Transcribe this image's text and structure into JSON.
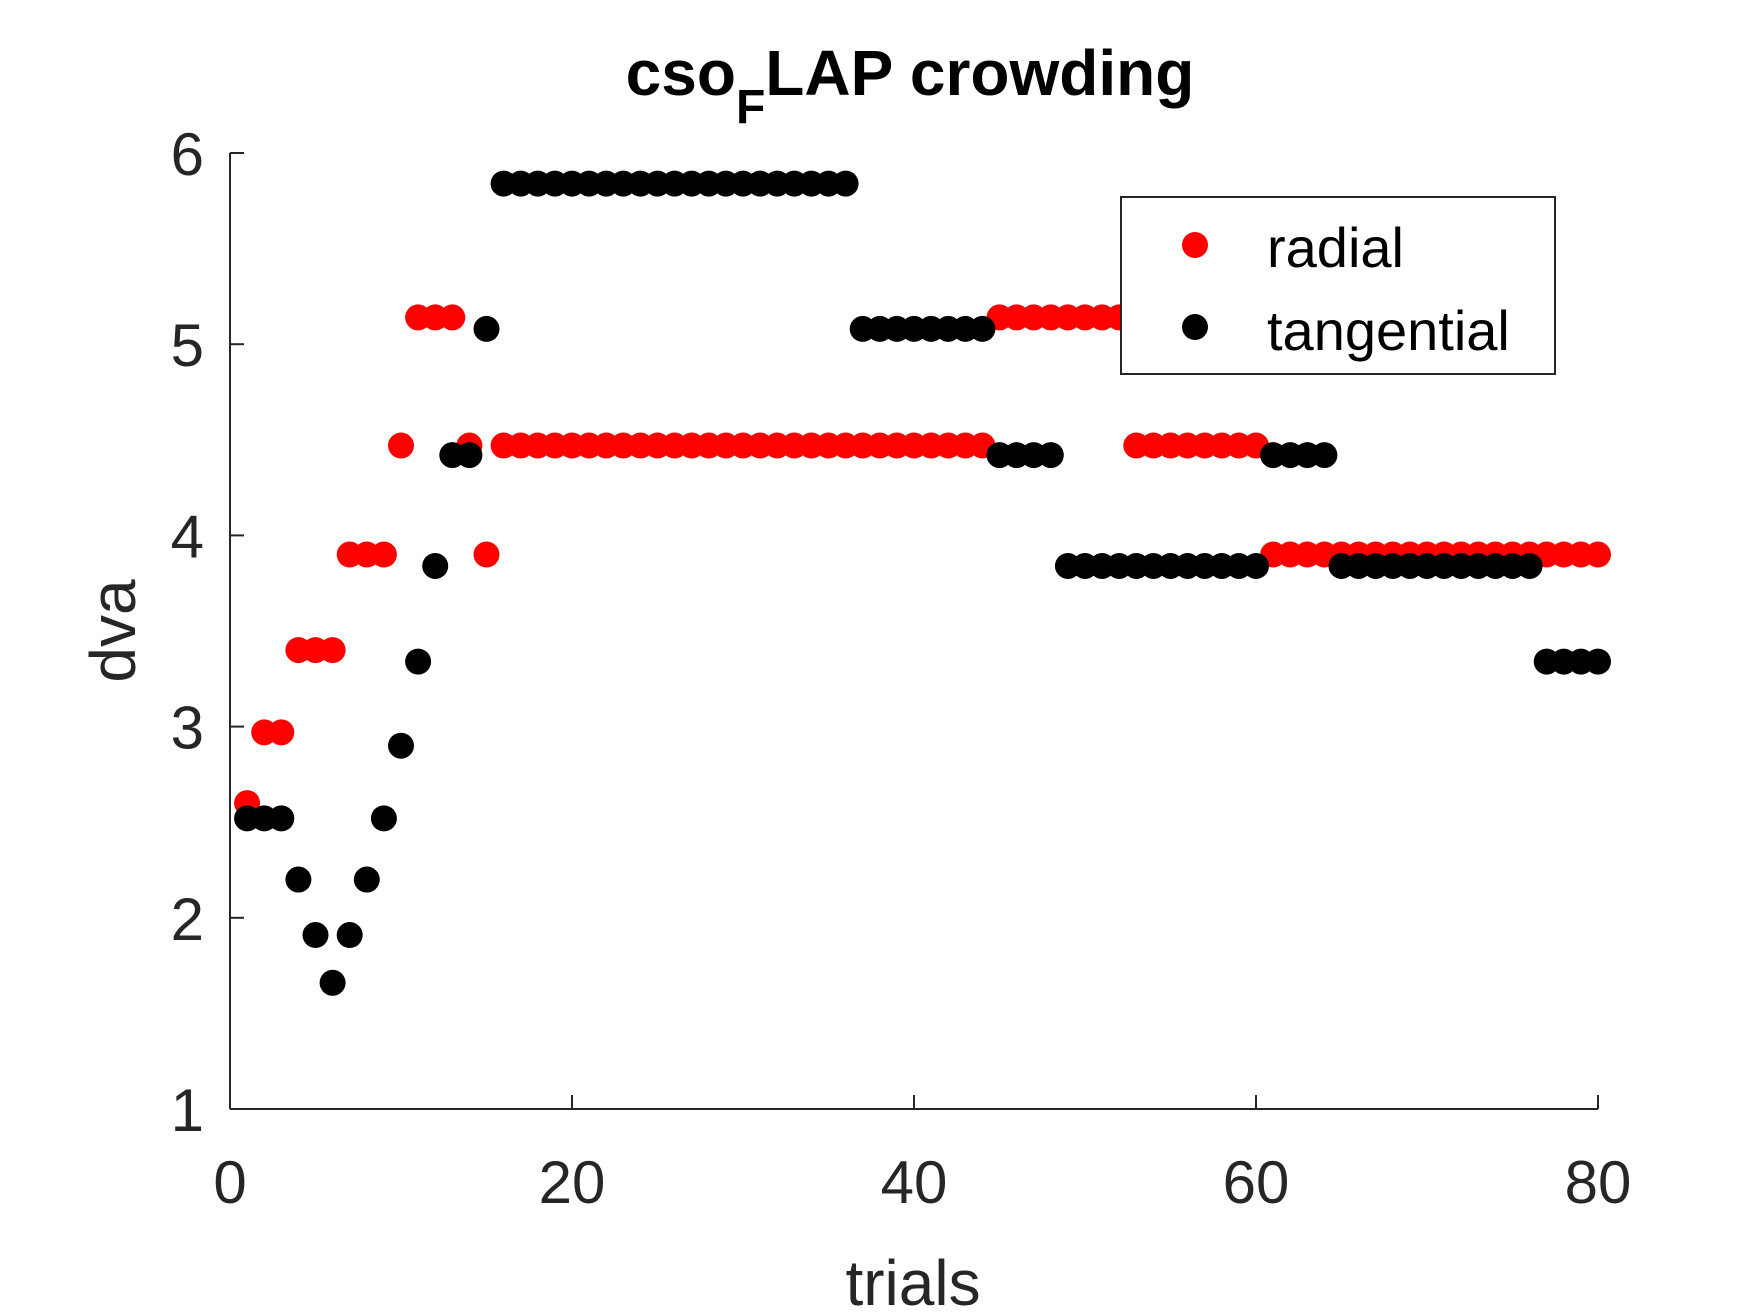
{
  "chart_data": {
    "type": "scatter",
    "title": {
      "main": "cso",
      "subscript": "F",
      "rest": "LAP crowding"
    },
    "xlabel": "trials",
    "ylabel": "dva",
    "xlim": [
      0,
      80
    ],
    "ylim": [
      1,
      6
    ],
    "xticks": [
      0,
      20,
      40,
      60,
      80
    ],
    "yticks": [
      1,
      2,
      3,
      4,
      5,
      6
    ],
    "xtick_labels": [
      "0",
      "20",
      "40",
      "60",
      "80"
    ],
    "ytick_labels": [
      "1",
      "2",
      "3",
      "4",
      "5",
      "6"
    ],
    "legend_position": "top-right",
    "grid": false,
    "series": [
      {
        "name": "radial",
        "color": "#ff0000",
        "points": [
          [
            1,
            2.6
          ],
          [
            2,
            2.97
          ],
          [
            3,
            2.97
          ],
          [
            4,
            3.4
          ],
          [
            5,
            3.4
          ],
          [
            6,
            3.4
          ],
          [
            7,
            3.9
          ],
          [
            8,
            3.9
          ],
          [
            9,
            3.9
          ],
          [
            10,
            4.47
          ],
          [
            11,
            5.14
          ],
          [
            12,
            5.14
          ],
          [
            13,
            5.14
          ],
          [
            14,
            4.47
          ],
          [
            15,
            3.9
          ],
          [
            16,
            4.47
          ],
          [
            17,
            4.47
          ],
          [
            18,
            4.47
          ],
          [
            19,
            4.47
          ],
          [
            20,
            4.47
          ],
          [
            21,
            4.47
          ],
          [
            22,
            4.47
          ],
          [
            23,
            4.47
          ],
          [
            24,
            4.47
          ],
          [
            25,
            4.47
          ],
          [
            26,
            4.47
          ],
          [
            27,
            4.47
          ],
          [
            28,
            4.47
          ],
          [
            29,
            4.47
          ],
          [
            30,
            4.47
          ],
          [
            31,
            4.47
          ],
          [
            32,
            4.47
          ],
          [
            33,
            4.47
          ],
          [
            34,
            4.47
          ],
          [
            35,
            4.47
          ],
          [
            36,
            4.47
          ],
          [
            37,
            4.47
          ],
          [
            38,
            4.47
          ],
          [
            39,
            4.47
          ],
          [
            40,
            4.47
          ],
          [
            41,
            4.47
          ],
          [
            42,
            4.47
          ],
          [
            43,
            4.47
          ],
          [
            44,
            4.47
          ],
          [
            45,
            5.14
          ],
          [
            46,
            5.14
          ],
          [
            47,
            5.14
          ],
          [
            48,
            5.14
          ],
          [
            49,
            5.14
          ],
          [
            50,
            5.14
          ],
          [
            51,
            5.14
          ],
          [
            52,
            5.14
          ],
          [
            53,
            4.47
          ],
          [
            54,
            4.47
          ],
          [
            55,
            4.47
          ],
          [
            56,
            4.47
          ],
          [
            57,
            4.47
          ],
          [
            58,
            4.47
          ],
          [
            59,
            4.47
          ],
          [
            60,
            4.47
          ],
          [
            61,
            3.9
          ],
          [
            62,
            3.9
          ],
          [
            63,
            3.9
          ],
          [
            64,
            3.9
          ],
          [
            65,
            3.9
          ],
          [
            66,
            3.9
          ],
          [
            67,
            3.9
          ],
          [
            68,
            3.9
          ],
          [
            69,
            3.9
          ],
          [
            70,
            3.9
          ],
          [
            71,
            3.9
          ],
          [
            72,
            3.9
          ],
          [
            73,
            3.9
          ],
          [
            74,
            3.9
          ],
          [
            75,
            3.9
          ],
          [
            76,
            3.9
          ],
          [
            77,
            3.9
          ],
          [
            78,
            3.9
          ],
          [
            79,
            3.9
          ],
          [
            80,
            3.9
          ]
        ]
      },
      {
        "name": "tangential",
        "color": "#000000",
        "points": [
          [
            1,
            2.52
          ],
          [
            2,
            2.52
          ],
          [
            3,
            2.52
          ],
          [
            4,
            2.2
          ],
          [
            5,
            1.91
          ],
          [
            6,
            1.66
          ],
          [
            7,
            1.91
          ],
          [
            8,
            2.2
          ],
          [
            9,
            2.52
          ],
          [
            10,
            2.9
          ],
          [
            11,
            3.34
          ],
          [
            12,
            3.84
          ],
          [
            13,
            4.42
          ],
          [
            14,
            4.42
          ],
          [
            15,
            5.08
          ],
          [
            16,
            5.84
          ],
          [
            17,
            5.84
          ],
          [
            18,
            5.84
          ],
          [
            19,
            5.84
          ],
          [
            20,
            5.84
          ],
          [
            21,
            5.84
          ],
          [
            22,
            5.84
          ],
          [
            23,
            5.84
          ],
          [
            24,
            5.84
          ],
          [
            25,
            5.84
          ],
          [
            26,
            5.84
          ],
          [
            27,
            5.84
          ],
          [
            28,
            5.84
          ],
          [
            29,
            5.84
          ],
          [
            30,
            5.84
          ],
          [
            31,
            5.84
          ],
          [
            32,
            5.84
          ],
          [
            33,
            5.84
          ],
          [
            34,
            5.84
          ],
          [
            35,
            5.84
          ],
          [
            36,
            5.84
          ],
          [
            37,
            5.08
          ],
          [
            38,
            5.08
          ],
          [
            39,
            5.08
          ],
          [
            40,
            5.08
          ],
          [
            41,
            5.08
          ],
          [
            42,
            5.08
          ],
          [
            43,
            5.08
          ],
          [
            44,
            5.08
          ],
          [
            45,
            4.42
          ],
          [
            46,
            4.42
          ],
          [
            47,
            4.42
          ],
          [
            48,
            4.42
          ],
          [
            49,
            3.84
          ],
          [
            50,
            3.84
          ],
          [
            51,
            3.84
          ],
          [
            52,
            3.84
          ],
          [
            53,
            3.84
          ],
          [
            54,
            3.84
          ],
          [
            55,
            3.84
          ],
          [
            56,
            3.84
          ],
          [
            57,
            3.84
          ],
          [
            58,
            3.84
          ],
          [
            59,
            3.84
          ],
          [
            60,
            3.84
          ],
          [
            61,
            4.42
          ],
          [
            62,
            4.42
          ],
          [
            63,
            4.42
          ],
          [
            64,
            4.42
          ],
          [
            65,
            3.84
          ],
          [
            66,
            3.84
          ],
          [
            67,
            3.84
          ],
          [
            68,
            3.84
          ],
          [
            69,
            3.84
          ],
          [
            70,
            3.84
          ],
          [
            71,
            3.84
          ],
          [
            72,
            3.84
          ],
          [
            73,
            3.84
          ],
          [
            74,
            3.84
          ],
          [
            75,
            3.84
          ],
          [
            76,
            3.84
          ],
          [
            77,
            3.34
          ],
          [
            78,
            3.34
          ],
          [
            79,
            3.34
          ],
          [
            80,
            3.34
          ]
        ]
      }
    ]
  }
}
